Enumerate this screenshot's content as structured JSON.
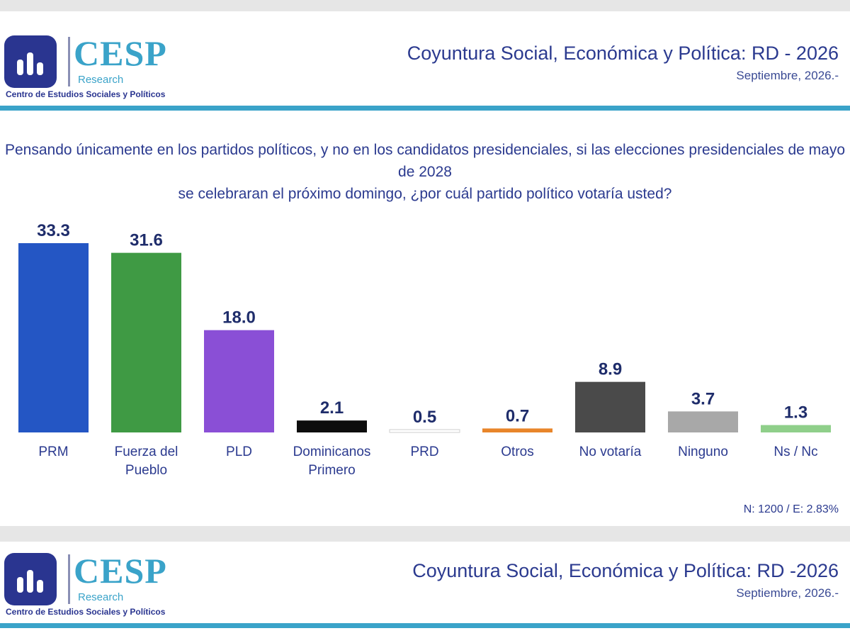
{
  "header": {
    "logo_name": "CESP",
    "logo_sub": "Research",
    "logo_tagline": "Centro de Estudios Sociales y Políticos",
    "title": "Coyuntura Social, Económica y Política: RD - 2026",
    "date": "Septiembre, 2026.-"
  },
  "question_line1": "Pensando únicamente en los partidos políticos, y no en los candidatos presidenciales, si las elecciones presidenciales de mayo de 2028",
  "question_line2": "se celebraran el próximo domingo, ¿por cuál partido político votaría usted?",
  "footer_note": "N: 1200 / E: 2.83%",
  "footer_header": {
    "logo_name": "CESP",
    "logo_sub": "Research",
    "logo_tagline": "Centro de Estudios Sociales y Políticos",
    "title": "Coyuntura Social, Económica y Política: RD -2026",
    "date": "Septiembre, 2026.-"
  },
  "colors": {
    "accent": "#3aa3c9",
    "navy": "#2b3a8f"
  },
  "chart_data": {
    "type": "bar",
    "categories": [
      "PRM",
      "Fuerza del\nPueblo",
      "PLD",
      "Dominicanos\nPrimero",
      "PRD",
      "Otros",
      "No votaría",
      "Ninguno",
      "Ns / Nc"
    ],
    "values": [
      33.3,
      31.6,
      18.0,
      2.1,
      0.5,
      0.7,
      8.9,
      3.7,
      1.3
    ],
    "value_labels": [
      "33.3",
      "31.6",
      "18.0",
      "2.1",
      "0.5",
      "0.7",
      "8.9",
      "3.7",
      "1.3"
    ],
    "colors": [
      "#2456c4",
      "#3f9a44",
      "#8a4fd6",
      "#0d0d0d",
      "#ffffff",
      "#e8852a",
      "#4a4a4a",
      "#a8a8a8",
      "#8fcf8a"
    ],
    "ylim": [
      0,
      33.3
    ],
    "grid": false,
    "title": "",
    "xlabel": "",
    "ylabel": ""
  }
}
